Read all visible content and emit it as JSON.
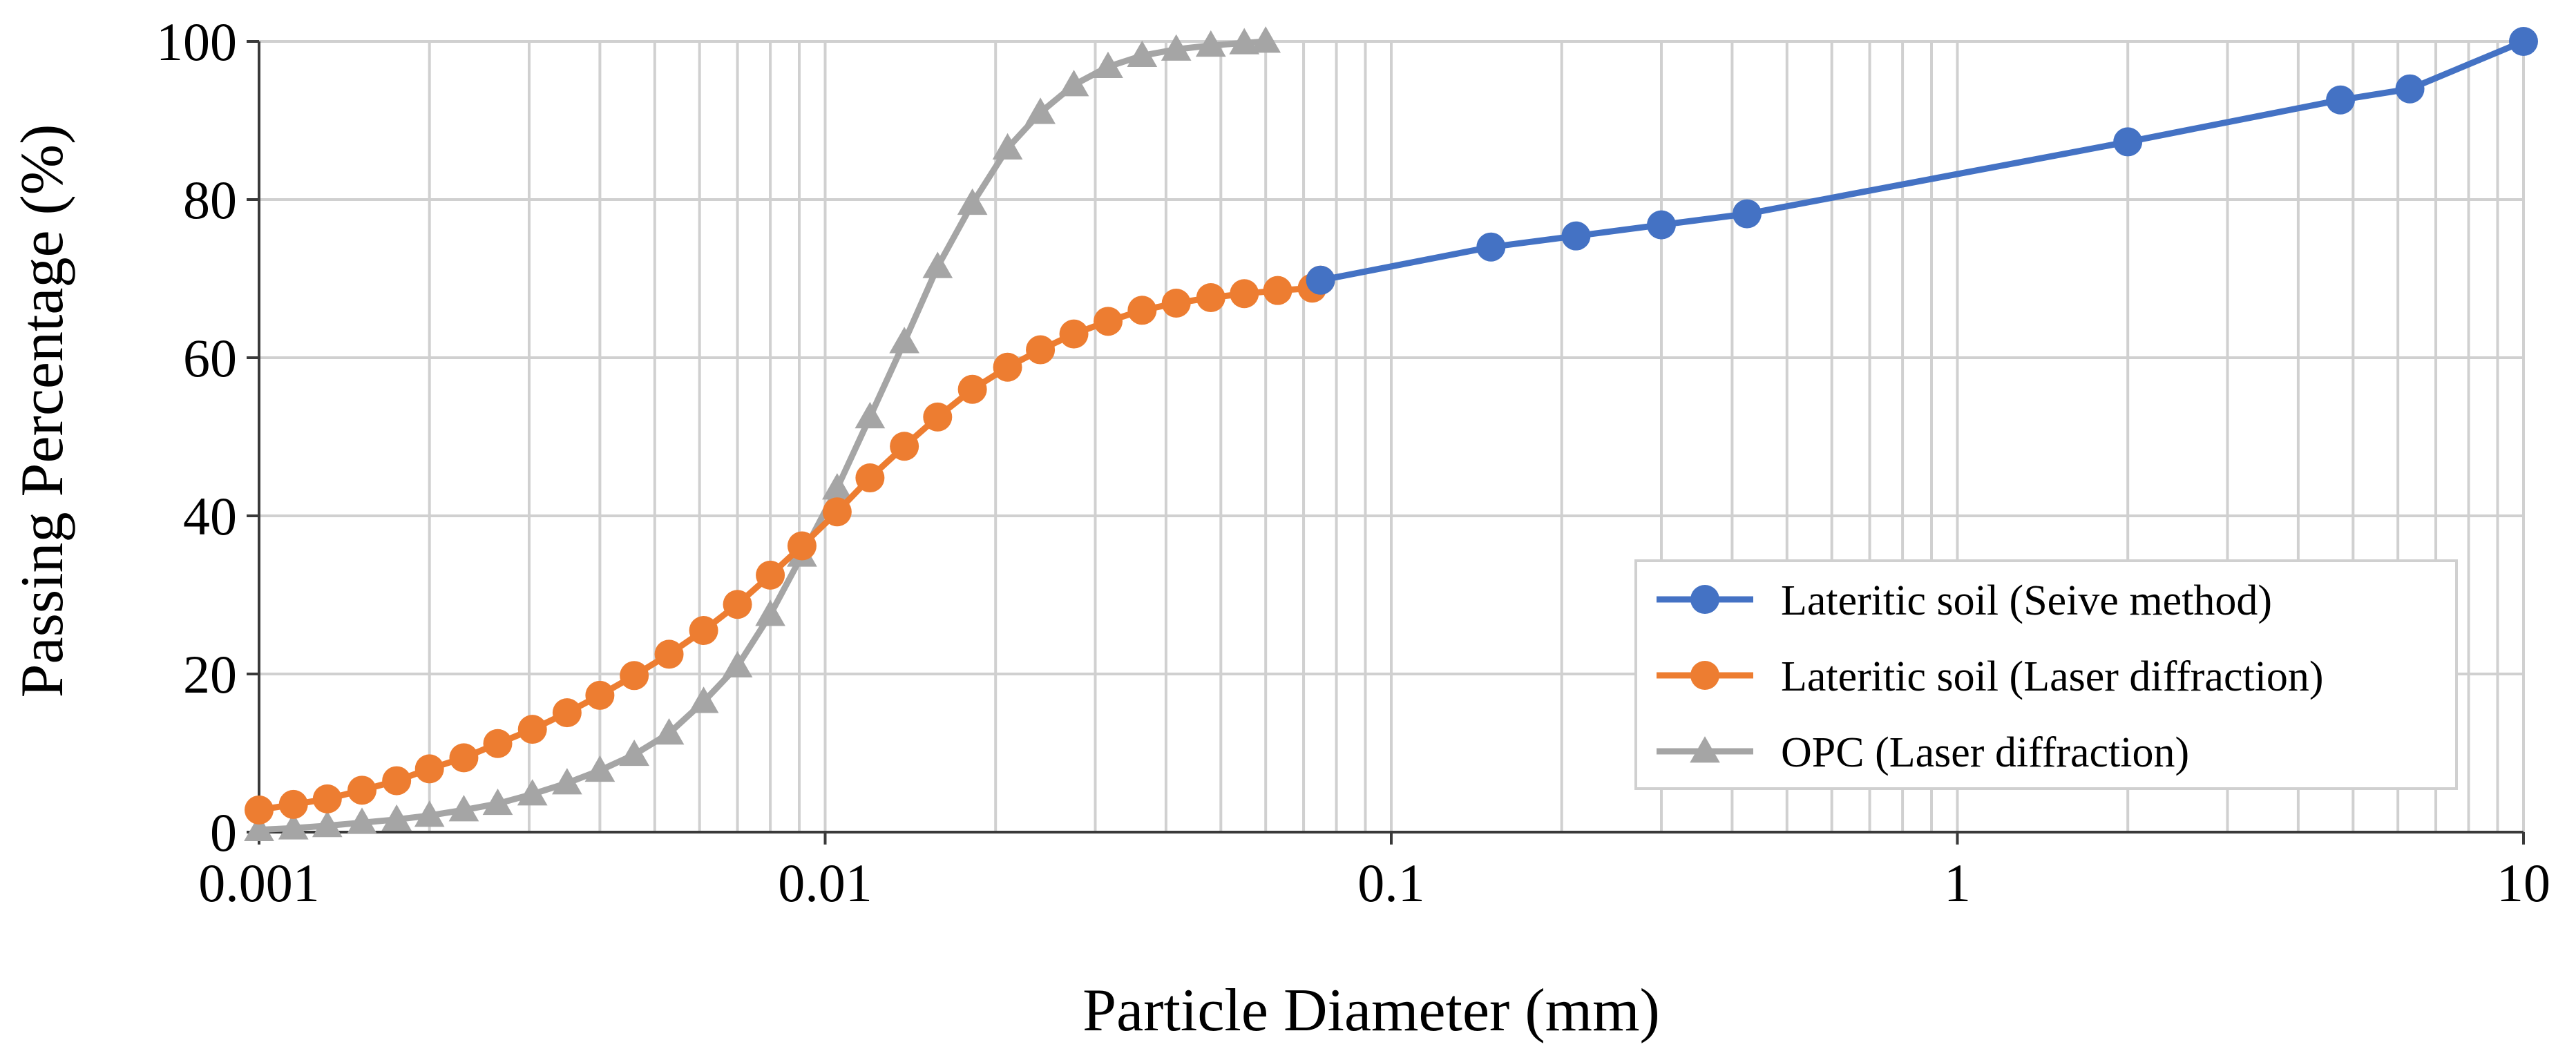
{
  "chart_data": {
    "type": "line",
    "xscale": "log",
    "xlim": [
      0.001,
      10
    ],
    "ylim": [
      0,
      100
    ],
    "xlabel": "Particle Diameter (mm)",
    "ylabel": "Passing Percentage (%)",
    "x_ticks": [
      0.001,
      0.01,
      0.1,
      1,
      10
    ],
    "x_tick_labels": [
      "0.001",
      "0.01",
      "0.1",
      "1",
      "10"
    ],
    "y_ticks": [
      0,
      20,
      40,
      60,
      80,
      100
    ],
    "y_tick_labels": [
      "0",
      "20",
      "40",
      "60",
      "80",
      "100"
    ],
    "grid": true,
    "legend_position": "bottom-right",
    "series": [
      {
        "name": "Lateritic soil (Seive method)",
        "color": "#4472C4",
        "marker": "circle",
        "x": [
          0.075,
          0.15,
          0.212,
          0.3,
          0.425,
          2.0,
          4.75,
          6.3,
          10
        ],
        "y": [
          69.8,
          74.0,
          75.4,
          76.8,
          78.2,
          87.3,
          92.6,
          94.0,
          100
        ]
      },
      {
        "name": "Lateritic soil (Laser diffraction)",
        "color": "#ED7D31",
        "marker": "circle",
        "x": [
          0.001,
          0.00115,
          0.00132,
          0.00152,
          0.00175,
          0.002,
          0.0023,
          0.00264,
          0.00304,
          0.0035,
          0.004,
          0.0046,
          0.0053,
          0.0061,
          0.007,
          0.008,
          0.0091,
          0.0105,
          0.012,
          0.0138,
          0.0158,
          0.0182,
          0.021,
          0.024,
          0.0275,
          0.0316,
          0.0363,
          0.0417,
          0.048,
          0.055,
          0.063,
          0.0725,
          0.075
        ],
        "y": [
          2.8,
          3.5,
          4.2,
          5.3,
          6.5,
          8.0,
          9.4,
          11.2,
          13.0,
          15.1,
          17.3,
          19.8,
          22.5,
          25.5,
          28.8,
          32.5,
          36.2,
          40.5,
          44.8,
          48.8,
          52.5,
          56.0,
          58.8,
          61.0,
          63.0,
          64.6,
          66.0,
          66.9,
          67.6,
          68.1,
          68.5,
          68.8,
          69.8
        ]
      },
      {
        "name": "OPC (Laser diffraction)",
        "color": "#A5A5A5",
        "marker": "triangle",
        "x": [
          0.001,
          0.00115,
          0.00132,
          0.00152,
          0.00175,
          0.002,
          0.0023,
          0.00264,
          0.00304,
          0.0035,
          0.004,
          0.0046,
          0.0053,
          0.0061,
          0.007,
          0.008,
          0.0091,
          0.0105,
          0.012,
          0.0138,
          0.0158,
          0.0182,
          0.021,
          0.024,
          0.0275,
          0.0316,
          0.0363,
          0.0417,
          0.048,
          0.055,
          0.06
        ],
        "y": [
          0.3,
          0.5,
          0.8,
          1.2,
          1.6,
          2.1,
          2.8,
          3.6,
          4.8,
          6.2,
          7.8,
          9.8,
          12.5,
          16.5,
          21.0,
          27.5,
          35.0,
          43.5,
          52.5,
          62.0,
          71.5,
          79.5,
          86.5,
          91.0,
          94.5,
          96.8,
          98.2,
          99.0,
          99.5,
          99.8,
          100
        ]
      }
    ]
  }
}
